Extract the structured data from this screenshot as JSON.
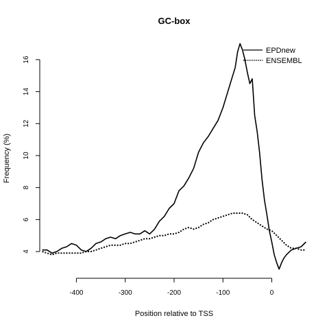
{
  "chart_data": {
    "type": "line",
    "title": "GC-box",
    "xlabel": "Position relative to TSS",
    "ylabel": "Frequency (%)",
    "xlim": [
      -475,
      75
    ],
    "ylim": [
      2.8,
      17.2
    ],
    "x_ticks": [
      -400,
      -300,
      -200,
      -100,
      0
    ],
    "x_tick_labels": [
      "-400",
      "-300",
      "-200",
      "-100",
      "0"
    ],
    "y_ticks": [
      4,
      6,
      8,
      10,
      12,
      14,
      16
    ],
    "y_tick_labels": [
      "4",
      "6",
      "8",
      "10",
      "12",
      "14",
      "16"
    ],
    "legend_position": "top-right",
    "grid": false,
    "series": [
      {
        "name": "EPDnew",
        "style": "solid",
        "color": "#000000",
        "x": [
          -470,
          -460,
          -450,
          -440,
          -430,
          -420,
          -410,
          -400,
          -390,
          -380,
          -370,
          -360,
          -350,
          -340,
          -330,
          -320,
          -310,
          -300,
          -290,
          -280,
          -270,
          -260,
          -250,
          -240,
          -230,
          -220,
          -210,
          -200,
          -190,
          -180,
          -170,
          -160,
          -150,
          -140,
          -130,
          -120,
          -110,
          -100,
          -90,
          -80,
          -75,
          -70,
          -65,
          -60,
          -55,
          -50,
          -45,
          -40,
          -35,
          -30,
          -25,
          -20,
          -15,
          -10,
          -5,
          0,
          5,
          10,
          15,
          20,
          25,
          30,
          40,
          50,
          60,
          70
        ],
        "values": [
          4.1,
          4.1,
          3.9,
          4.0,
          4.2,
          4.3,
          4.5,
          4.4,
          4.1,
          4.0,
          4.2,
          4.5,
          4.6,
          4.8,
          4.9,
          4.8,
          5.0,
          5.1,
          5.2,
          5.1,
          5.1,
          5.3,
          5.1,
          5.4,
          5.9,
          6.2,
          6.7,
          7.0,
          7.8,
          8.1,
          8.6,
          9.2,
          10.2,
          10.8,
          11.2,
          11.7,
          12.2,
          13.0,
          14.0,
          15.0,
          15.5,
          16.5,
          17.0,
          16.6,
          16.0,
          15.2,
          14.5,
          14.8,
          12.5,
          11.5,
          10.2,
          8.5,
          7.2,
          6.3,
          5.3,
          4.6,
          3.8,
          3.3,
          2.9,
          3.3,
          3.6,
          3.8,
          4.1,
          4.2,
          4.3,
          4.6
        ]
      },
      {
        "name": "ENSEMBL",
        "style": "dotted",
        "color": "#000000",
        "x": [
          -470,
          -460,
          -450,
          -440,
          -430,
          -420,
          -410,
          -400,
          -390,
          -380,
          -370,
          -360,
          -350,
          -340,
          -330,
          -320,
          -310,
          -300,
          -290,
          -280,
          -270,
          -260,
          -250,
          -240,
          -230,
          -220,
          -210,
          -200,
          -190,
          -180,
          -170,
          -160,
          -150,
          -140,
          -130,
          -120,
          -110,
          -100,
          -90,
          -80,
          -70,
          -60,
          -50,
          -40,
          -30,
          -20,
          -10,
          0,
          10,
          20,
          30,
          40,
          50,
          60,
          70
        ],
        "values": [
          4.0,
          3.9,
          3.8,
          3.9,
          3.9,
          3.9,
          3.9,
          3.9,
          3.9,
          4.0,
          4.0,
          4.1,
          4.2,
          4.3,
          4.4,
          4.4,
          4.4,
          4.5,
          4.5,
          4.6,
          4.7,
          4.8,
          4.8,
          4.9,
          5.0,
          5.0,
          5.1,
          5.1,
          5.2,
          5.4,
          5.5,
          5.4,
          5.5,
          5.7,
          5.8,
          6.0,
          6.1,
          6.2,
          6.3,
          6.4,
          6.4,
          6.4,
          6.3,
          6.0,
          5.8,
          5.6,
          5.4,
          5.3,
          5.0,
          4.7,
          4.4,
          4.2,
          4.2,
          4.1,
          4.1
        ]
      }
    ]
  }
}
